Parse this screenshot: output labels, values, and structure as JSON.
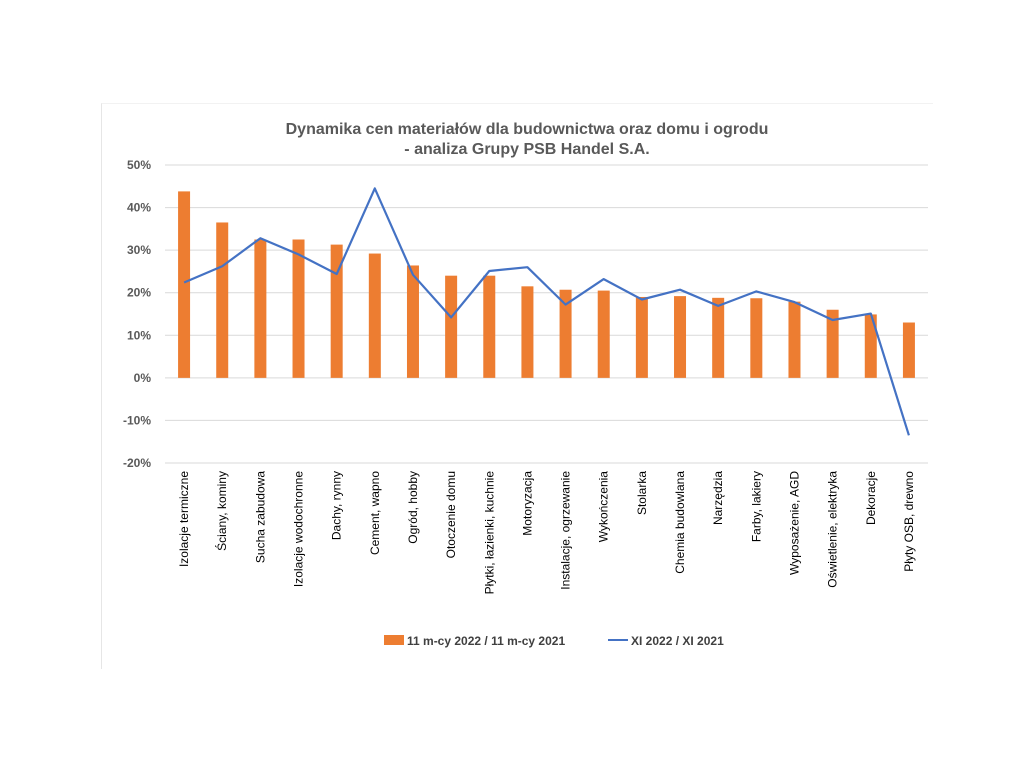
{
  "chart_data": {
    "type": "bar",
    "title": [
      "Dynamika cen materiałów dla budownictwa oraz domu i ogrodu",
      "- analiza Grupy PSB Handel S.A."
    ],
    "categories": [
      "Izolacje termiczne",
      "Ściany, kominy",
      "Sucha zabudowa",
      "Izolacje wodochronne",
      "Dachy, rynny",
      "Cement, wapno",
      "Ogród, hobby",
      "Otoczenie domu",
      "Płytki, łazienki, kuchnie",
      "Motoryzacja",
      "Instalacje, ogrzewanie",
      "Wykończenia",
      "Stolarka",
      "Chemia budowlana",
      "Narzędzia",
      "Farby, lakiery",
      "Wyposażenie, AGD",
      "Oświetlenie, elektryka",
      "Dekoracje",
      "Płyty OSB, drewno"
    ],
    "series": [
      {
        "name": "11 m-cy 2022 / 11 m-cy 2021",
        "type": "bar",
        "color": "#ed7d31",
        "values": [
          43.8,
          36.5,
          32.5,
          32.5,
          31.3,
          29.2,
          26.4,
          24.0,
          24.0,
          21.5,
          20.7,
          20.5,
          19.0,
          19.2,
          18.8,
          18.7,
          17.9,
          16.0,
          14.9,
          13.0
        ]
      },
      {
        "name": "XI 2022 / XI 2021",
        "type": "line",
        "color": "#4472c4",
        "values": [
          22.4,
          26.2,
          32.8,
          29.0,
          24.4,
          44.5,
          24.2,
          14.2,
          25.1,
          26.0,
          17.2,
          23.2,
          18.4,
          20.7,
          16.9,
          20.3,
          17.8,
          13.6,
          15.1,
          -13.5
        ]
      }
    ],
    "y_ticks": [
      "50%",
      "40%",
      "30%",
      "20%",
      "10%",
      "0%",
      "-10%",
      "-20%"
    ],
    "ylim": [
      -20,
      50
    ],
    "y_unit": "%",
    "grid": true,
    "legend_position": "bottom"
  }
}
